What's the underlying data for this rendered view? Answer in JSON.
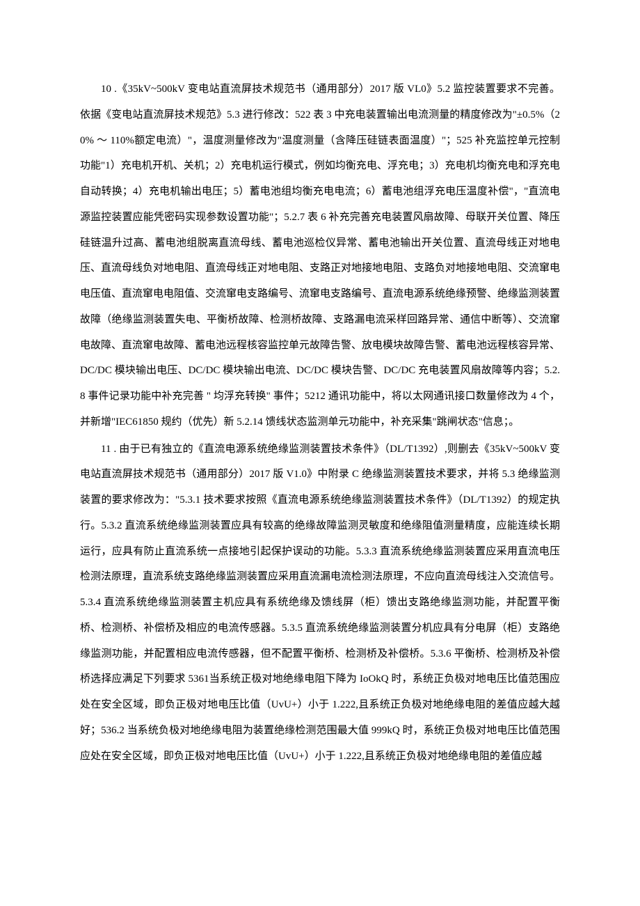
{
  "document": {
    "pagePaddingTop": 110,
    "pagePaddingSides": 115,
    "fontSize": 15,
    "lineHeight": 2.45,
    "textColor": "#000000",
    "backgroundColor": "#ffffff",
    "paragraphs": [
      "10 .《35kV~500kV 变电站直流屏技术规范书（通用部分）2017 版 VL0》5.2 监控装置要求不完善。依据《变电站直流屏技术规范》5.3 进行修改：522 表 3 中充电装置输出电流测量的精度修改为\"±0.5%（20% ～ 110%额定电流）\"，温度测量修改为\"温度测量（含降压硅链表面温度）\"；525 补充监控单元控制功能\"1）充电机开机、关机；2）充电机运行模式，例如均衡充电、浮充电；3）充电机均衡充电和浮充电自动转换；4）充电机输出电压；5）蓄电池组均衡充电电流；6）蓄电池组浮充电压温度补偿\"，\"直流电源监控装置应能凭密码实现参数设置功能\"；5.2.7 表 6 补充完善充电装置风扇故障、母联开关位置、降压硅链温升过高、蓄电池组脱离直流母线、蓄电池巡检仪异常、蓄电池输出开关位置、直流母线正对地电压、直流母线负对地电阻、直流母线正对地电阻、支路正对地接地电阻、支路负对地接地电阻、交流窜电电压值、直流窜电电阻值、交流窜电支路编号、流窜电支路编号、直流电源系统绝缘预警、绝缘监测装置故障（绝缘监测装置失电、平衡桥故障、检测桥故障、支路漏电流采样回路异常、通信中断等）、交流窜电故障、直流窜电故障、蓄电池远程核容监控单元故障告警、放电模块故障告警、蓄电池远程核容异常、DC/DC 模块输出电压、DC/DC 模块输出电流、DC/DC 模块告警、DC/DC 充电装置风扇故障等内容；5.2.8 事件记录功能中补充完善 \" 均浮充转换\" 事件；5212 通讯功能中，将以太网通讯接口数量修改为 4 个，并新增\"IEC61850 规约（优先）新 5.2.14 馈线状态监测单元功能中，补充采集\"跳闸状态\"信息；。",
      "11 . 由于已有独立的《直流电源系统绝缘监测装置技术条件》（DL/T1392）,则删去《35kV~500kV 变电站直流屏技术规范书（通用部分）2017 版 V1.0》中附录 C 绝缘监测装置技术要求，并将 5.3 绝缘监测装置的要求修改为：\"5.3.1 技术要求按照《直流电源系统绝缘监测装置技术条件》（DL/T1392）的规定执行。5.3.2 直流系统绝缘监测装置应具有较高的绝缘故障监测灵敏度和绝缘阻值测量精度，应能连续长期运行，应具有防止直流系统一点接地引起保护误动的功能。5.3.3 直流系统绝缘监测装置应采用直流电压检测法原理，直流系统支路绝缘监测装置应采用直流漏电流检测法原理，不应向直流母线注入交流信号。5.3.4 直流系统绝缘监测装置主机应具有系统绝缘及馈线屏（柜）馈出支路绝缘监测功能，并配置平衡桥、检测桥、补偿桥及相应的电流传感器。5.3.5 直流系统绝缘监测装置分机应具有分电屏（柜）支路绝缘监测功能，并配置相应电流传感器，但不配置平衡桥、检测桥及补偿桥。5.3.6 平衡桥、检测桥及补偿桥选择应满足下列要求 5361当系统正极对地绝缘电阻下降为 IoOkQ 时，系统正负极对地电压比值范围应处在安全区域，即负正极对地电压比值（UvU+）小于 1.222,且系统正负极对地绝缘电阻的差值应越大越好；536.2 当系统负极对地绝缘电阻为装置绝缘检测范围最大值 999kQ 时，系统正负极对地电压比值范围应处在安全区域，即负正极对地电压比值（UvU+）小于 1.222,且系统正负极对地绝缘电阻的差值应越"
    ]
  }
}
